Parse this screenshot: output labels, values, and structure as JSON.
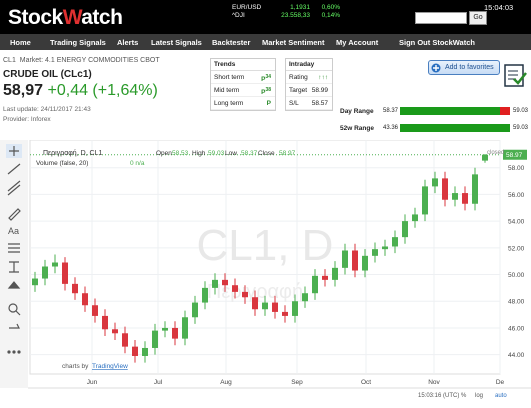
{
  "header": {
    "logo_a": "Stock",
    "logo_b": "W",
    "logo_c": "atch",
    "tickers": [
      {
        "name": "EUR/USD",
        "price": "1,1931",
        "change": "0,60%"
      },
      {
        "name": "^DJI",
        "price": "23.558,33",
        "change": "0,14%"
      }
    ],
    "time": "15:04:03",
    "go": "Go"
  },
  "nav": [
    "Home",
    "Trading Signals",
    "Alerts",
    "Latest Signals",
    "Backtester",
    "Market Sentiment",
    "My Account",
    "Sign Out StockWatch"
  ],
  "instrument": {
    "code": "CL1",
    "market": "Market: 4.1 ENERGY COMMODITIES CBOT",
    "name": "CRUDE OIL (CLc1)",
    "price": "58,97",
    "change": "+0,44 (+1,64%)",
    "last_update": "Last update: 24/11/2017 21:43",
    "provider": "Provider: Inforex"
  },
  "trends": {
    "title": "Trends",
    "rows": [
      {
        "label": "Short term",
        "signal": "P",
        "days": "34"
      },
      {
        "label": "Mid term",
        "signal": "P",
        "days": "38"
      },
      {
        "label": "Long term",
        "signal": "P"
      }
    ]
  },
  "intraday": {
    "title": "Intraday",
    "rows": [
      {
        "label": "Rating",
        "value": "↑↑↑"
      },
      {
        "label": "Target",
        "value": "58.99"
      },
      {
        "label": "S/L",
        "value": "58.57"
      }
    ]
  },
  "favorites": "Add to favorites",
  "ranges": [
    {
      "label": "Day Range",
      "low": 58.37,
      "high": 59.03,
      "current": 58.97
    },
    {
      "label": "52w Range",
      "low": 43.36,
      "high": 59.03,
      "current": 58.97
    }
  ],
  "chart_data": {
    "type": "candlestick",
    "title": "Περιγραφή, D, CL1",
    "ohlc_legend": [
      {
        "label": "Open",
        "value": "58.53"
      },
      {
        "label": "High",
        "value": "59.03"
      },
      {
        "label": "Low",
        "value": "58.37"
      },
      {
        "label": "Close",
        "value": "58.97"
      }
    ],
    "volume_label": "Volume (false, 20)",
    "volume_value": "0 n/a",
    "status": "closed",
    "watermark": "CL1, D",
    "watermark_sub": "Περιγραφή",
    "credit_a": "charts by ",
    "credit_b": "TradingView",
    "clock": "15:03:16 (UTC)",
    "scale_buttons": [
      "%",
      "log",
      "auto"
    ],
    "last_price": {
      "value": 58.97,
      "label": "58.97"
    },
    "up_color": "#4caf50",
    "down_color": "#d9363e",
    "open": [
      49.2,
      49.7,
      50.6,
      50.9,
      49.3,
      48.6,
      47.7,
      46.9,
      45.9,
      45.6,
      44.6,
      43.9,
      44.5,
      45.8,
      46.0,
      45.2,
      46.8,
      47.9,
      49.0,
      49.6,
      49.2,
      48.7,
      48.3,
      47.4,
      47.9,
      47.2,
      46.9,
      48.0,
      48.6,
      49.9,
      49.6,
      50.5,
      51.8,
      50.3,
      51.4,
      51.9,
      52.1,
      52.8,
      54.0,
      54.5,
      56.6,
      57.2,
      55.6,
      56.1,
      55.3,
      58.53
    ],
    "high": [
      50.2,
      51.1,
      51.5,
      51.3,
      49.8,
      49.1,
      48.2,
      47.4,
      46.4,
      46.1,
      45.1,
      45.0,
      46.3,
      46.5,
      46.5,
      47.3,
      48.4,
      49.5,
      50.1,
      50.1,
      49.7,
      49.2,
      48.8,
      48.4,
      48.4,
      47.7,
      48.5,
      49.1,
      50.4,
      50.4,
      51.0,
      52.3,
      52.3,
      51.9,
      52.4,
      52.6,
      53.3,
      54.5,
      55.0,
      57.1,
      57.7,
      57.7,
      56.6,
      56.6,
      58.0,
      59.03
    ],
    "low": [
      48.7,
      49.2,
      50.1,
      48.8,
      48.1,
      47.2,
      46.4,
      45.4,
      45.1,
      44.1,
      43.4,
      43.4,
      44.0,
      45.3,
      44.7,
      44.7,
      46.3,
      47.4,
      48.5,
      48.7,
      48.2,
      47.8,
      46.9,
      46.9,
      46.7,
      46.4,
      46.4,
      47.5,
      48.1,
      49.1,
      49.1,
      50.0,
      49.8,
      49.8,
      50.9,
      51.4,
      51.6,
      52.3,
      53.5,
      54.0,
      56.1,
      55.1,
      55.1,
      54.8,
      54.8,
      58.37
    ],
    "close": [
      49.7,
      50.6,
      50.9,
      49.3,
      48.6,
      47.7,
      46.9,
      45.9,
      45.6,
      44.6,
      43.9,
      44.5,
      45.8,
      46.0,
      45.2,
      46.8,
      47.9,
      49.0,
      49.6,
      49.2,
      48.7,
      48.3,
      47.4,
      47.9,
      47.2,
      46.9,
      48.0,
      48.6,
      49.9,
      49.6,
      50.5,
      51.8,
      50.3,
      51.4,
      51.9,
      52.1,
      52.8,
      54.0,
      54.5,
      56.6,
      57.2,
      55.6,
      56.1,
      55.3,
      57.5,
      58.97
    ],
    "xlim": [
      -0.5,
      47
    ],
    "xticks": [
      {
        "value": 5.7,
        "label": "Jun"
      },
      {
        "value": 12.3,
        "label": "Jul"
      },
      {
        "value": 19.1,
        "label": "Aug"
      },
      {
        "value": 26.2,
        "label": "Sep"
      },
      {
        "value": 33.1,
        "label": "Oct"
      },
      {
        "value": 39.9,
        "label": "Nov"
      },
      {
        "value": 46.5,
        "label": "De"
      }
    ],
    "ylim": [
      43.0,
      59.4
    ],
    "yticks": [
      {
        "value": 44,
        "label": "44.00"
      },
      {
        "value": 46,
        "label": "46.00"
      },
      {
        "value": 48,
        "label": "48.00"
      },
      {
        "value": 50,
        "label": "50.00"
      },
      {
        "value": 52,
        "label": "52.00"
      },
      {
        "value": 54,
        "label": "54.00"
      },
      {
        "value": 56,
        "label": "56.00"
      },
      {
        "value": 58,
        "label": "58.00"
      }
    ],
    "grid": true
  }
}
